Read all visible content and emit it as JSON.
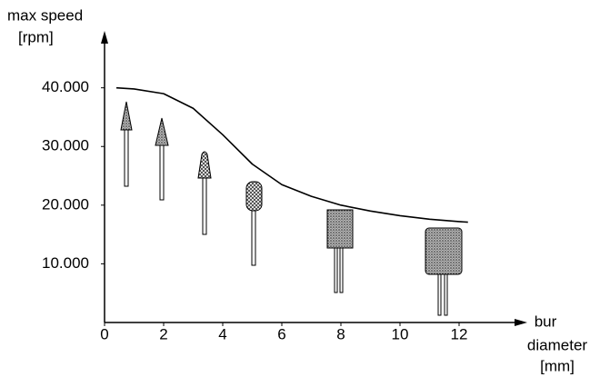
{
  "chart_data": {
    "type": "line",
    "ylabel": [
      "max speed",
      "[rpm]"
    ],
    "xlabel": [
      "bur",
      "diameter",
      "[mm]"
    ],
    "series": [
      {
        "color": "#000000",
        "x": [
          0.4,
          1,
          2,
          3,
          4,
          5,
          6,
          7,
          8,
          9,
          10,
          11,
          12,
          12.3
        ],
        "values": [
          40000,
          39800,
          39000,
          36500,
          32000,
          27000,
          23500,
          21500,
          20000,
          19000,
          18200,
          17600,
          17200,
          17100
        ]
      }
    ],
    "xlim": [
      0,
      14
    ],
    "ylim": [
      0,
      48000
    ],
    "xticks": [
      0,
      2,
      4,
      6,
      8,
      10,
      12
    ],
    "yticks": [
      {
        "value": 10000,
        "label": "10.000"
      },
      {
        "value": 20000,
        "label": "20.000"
      },
      {
        "value": 30000,
        "label": "30.000"
      },
      {
        "value": 40000,
        "label": "40.000"
      }
    ],
    "grid": false
  }
}
